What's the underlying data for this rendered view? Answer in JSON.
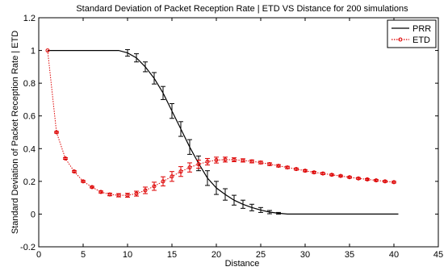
{
  "chart_data": {
    "type": "line",
    "title": "Standard Deviation of Packet Reception Rate | ETD VS Distance for 200 simulations",
    "xlabel": "Distance",
    "ylabel": "Standard Deviation of Packet Reception Rate | ETD",
    "xlim": [
      0,
      45
    ],
    "ylim": [
      -0.2,
      1.2
    ],
    "xticks": [
      0,
      5,
      10,
      15,
      20,
      25,
      30,
      35,
      40,
      45
    ],
    "yticks": [
      -0.2,
      0,
      0.2,
      0.4,
      0.6,
      0.8,
      1.0,
      1.2
    ],
    "xtick_labels": [
      "0",
      "5",
      "10",
      "15",
      "20",
      "25",
      "30",
      "35",
      "40",
      "45"
    ],
    "ytick_labels": [
      "-0.2",
      "0",
      "0.2",
      "0.4",
      "0.6",
      "0.8",
      "1",
      "1.2"
    ],
    "grid": false,
    "legend_position": "top-right",
    "series": [
      {
        "name": "PRR",
        "color": "#000000",
        "style": "solid",
        "x": [
          1,
          9,
          10,
          11,
          12,
          13,
          14,
          15,
          16,
          17,
          18,
          19,
          20,
          21,
          22,
          23,
          24,
          25,
          26,
          27,
          28,
          30,
          32,
          35,
          40.5
        ],
        "y": [
          1.0,
          1.0,
          0.985,
          0.955,
          0.9,
          0.83,
          0.74,
          0.63,
          0.52,
          0.41,
          0.31,
          0.22,
          0.16,
          0.12,
          0.085,
          0.06,
          0.04,
          0.025,
          0.012,
          0.005,
          0.0,
          0.0,
          0.0,
          0.0,
          0.0
        ],
        "err": [
          0,
          0,
          0.02,
          0.025,
          0.03,
          0.035,
          0.04,
          0.045,
          0.045,
          0.045,
          0.045,
          0.045,
          0.04,
          0.035,
          0.03,
          0.025,
          0.02,
          0.015,
          0.01,
          0.005,
          0,
          0,
          0,
          0,
          0
        ]
      },
      {
        "name": "ETD",
        "color": "#dd0000",
        "style": "dotted",
        "marker": "circle",
        "x": [
          1,
          2,
          3,
          4,
          5,
          6,
          7,
          8,
          9,
          10,
          11,
          12,
          13,
          14,
          15,
          16,
          17,
          18,
          19,
          20,
          21,
          22,
          23,
          24,
          25,
          26,
          27,
          28,
          29,
          30,
          31,
          32,
          33,
          34,
          35,
          36,
          37,
          38,
          39,
          40
        ],
        "y": [
          1.0,
          0.5,
          0.34,
          0.26,
          0.2,
          0.165,
          0.135,
          0.12,
          0.115,
          0.115,
          0.125,
          0.145,
          0.17,
          0.2,
          0.23,
          0.26,
          0.285,
          0.305,
          0.32,
          0.33,
          0.333,
          0.332,
          0.328,
          0.322,
          0.315,
          0.305,
          0.295,
          0.285,
          0.275,
          0.265,
          0.255,
          0.248,
          0.24,
          0.233,
          0.225,
          0.218,
          0.212,
          0.206,
          0.2,
          0.195
        ],
        "err": [
          0,
          0.005,
          0.005,
          0.005,
          0.005,
          0.005,
          0.006,
          0.008,
          0.01,
          0.012,
          0.015,
          0.02,
          0.025,
          0.028,
          0.03,
          0.03,
          0.028,
          0.025,
          0.02,
          0.018,
          0.015,
          0.012,
          0.01,
          0.009,
          0.008,
          0.008,
          0.007,
          0.007,
          0.006,
          0.006,
          0.006,
          0.006,
          0.005,
          0.005,
          0.005,
          0.005,
          0.005,
          0.005,
          0.005,
          0.005
        ]
      }
    ]
  }
}
